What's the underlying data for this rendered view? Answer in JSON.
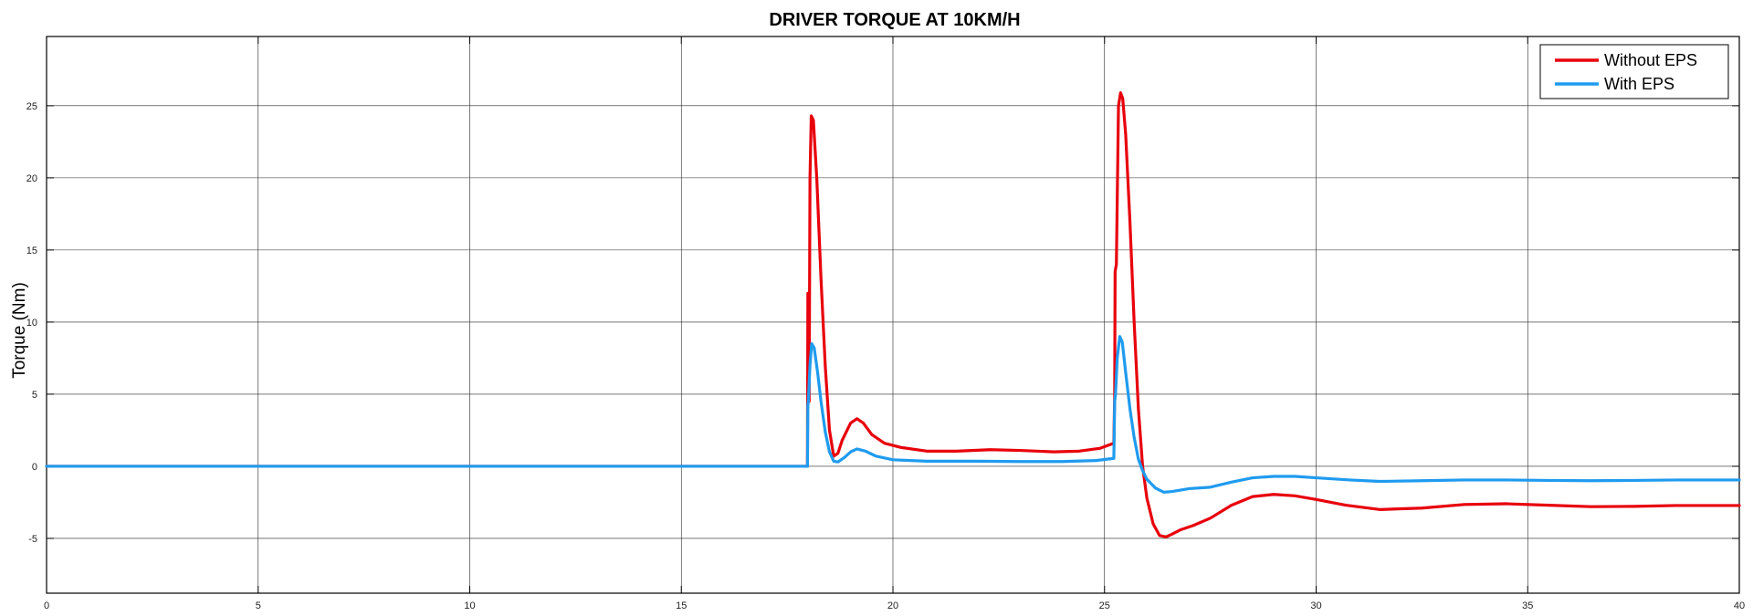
{
  "chart_data": {
    "type": "line",
    "title": "DRIVER TORQUE AT 10KM/H",
    "xlabel": "",
    "ylabel": "Torque (Nm)",
    "xlim": [
      0,
      40
    ],
    "ylim": [
      -8.8,
      29.8
    ],
    "x_ticks": [
      0,
      5,
      10,
      15,
      20,
      25,
      30,
      35,
      40
    ],
    "y_ticks": [
      -5,
      0,
      5,
      10,
      15,
      20,
      25
    ],
    "grid": true,
    "legend_position": "top-right",
    "series": [
      {
        "name": "Without EPS",
        "color": "#e8000b",
        "points": [
          [
            0,
            0
          ],
          [
            17.98,
            0
          ],
          [
            17.99,
            12
          ],
          [
            18.0,
            12
          ],
          [
            18.02,
            4.5
          ],
          [
            18.04,
            20
          ],
          [
            18.07,
            24.3
          ],
          [
            18.12,
            24
          ],
          [
            18.2,
            20
          ],
          [
            18.3,
            13
          ],
          [
            18.4,
            7
          ],
          [
            18.5,
            2.5
          ],
          [
            18.6,
            0.7
          ],
          [
            18.7,
            0.9
          ],
          [
            18.8,
            1.8
          ],
          [
            19.0,
            3.0
          ],
          [
            19.15,
            3.3
          ],
          [
            19.3,
            3.0
          ],
          [
            19.5,
            2.2
          ],
          [
            19.8,
            1.6
          ],
          [
            20.2,
            1.3
          ],
          [
            20.8,
            1.05
          ],
          [
            21.5,
            1.05
          ],
          [
            22.3,
            1.15
          ],
          [
            23.0,
            1.1
          ],
          [
            23.8,
            1.0
          ],
          [
            24.4,
            1.05
          ],
          [
            24.9,
            1.25
          ],
          [
            25.22,
            1.6
          ],
          [
            25.24,
            5
          ],
          [
            25.25,
            13.5
          ],
          [
            25.28,
            14
          ],
          [
            25.33,
            25
          ],
          [
            25.38,
            25.9
          ],
          [
            25.43,
            25.5
          ],
          [
            25.5,
            23
          ],
          [
            25.6,
            17
          ],
          [
            25.7,
            10
          ],
          [
            25.8,
            4
          ],
          [
            25.9,
            0
          ],
          [
            26.0,
            -2.2
          ],
          [
            26.15,
            -4
          ],
          [
            26.3,
            -4.8
          ],
          [
            26.45,
            -4.9
          ],
          [
            26.6,
            -4.7
          ],
          [
            26.8,
            -4.4
          ],
          [
            27.1,
            -4.1
          ],
          [
            27.5,
            -3.6
          ],
          [
            28.0,
            -2.7
          ],
          [
            28.5,
            -2.1
          ],
          [
            29.0,
            -1.95
          ],
          [
            29.5,
            -2.05
          ],
          [
            30.0,
            -2.3
          ],
          [
            30.7,
            -2.7
          ],
          [
            31.5,
            -3.0
          ],
          [
            32.5,
            -2.9
          ],
          [
            33.5,
            -2.65
          ],
          [
            34.5,
            -2.6
          ],
          [
            35.5,
            -2.7
          ],
          [
            36.5,
            -2.8
          ],
          [
            37.5,
            -2.78
          ],
          [
            38.5,
            -2.72
          ],
          [
            40,
            -2.72
          ]
        ]
      },
      {
        "name": "With EPS",
        "color": "#1f9bef",
        "points": [
          [
            0,
            0
          ],
          [
            17.98,
            0
          ],
          [
            17.99,
            4.2
          ],
          [
            18.0,
            4.5
          ],
          [
            18.04,
            7
          ],
          [
            18.08,
            8.5
          ],
          [
            18.14,
            8.2
          ],
          [
            18.22,
            6.5
          ],
          [
            18.3,
            4.5
          ],
          [
            18.4,
            2.4
          ],
          [
            18.5,
            1
          ],
          [
            18.6,
            0.35
          ],
          [
            18.7,
            0.3
          ],
          [
            18.85,
            0.6
          ],
          [
            19.0,
            1.0
          ],
          [
            19.15,
            1.2
          ],
          [
            19.35,
            1.05
          ],
          [
            19.6,
            0.7
          ],
          [
            20.0,
            0.45
          ],
          [
            20.8,
            0.35
          ],
          [
            22.0,
            0.35
          ],
          [
            23.0,
            0.33
          ],
          [
            24.0,
            0.33
          ],
          [
            24.8,
            0.4
          ],
          [
            25.22,
            0.55
          ],
          [
            25.24,
            4.5
          ],
          [
            25.26,
            5
          ],
          [
            25.3,
            7.5
          ],
          [
            25.36,
            9
          ],
          [
            25.42,
            8.6
          ],
          [
            25.5,
            6.5
          ],
          [
            25.6,
            4
          ],
          [
            25.7,
            2
          ],
          [
            25.8,
            0.5
          ],
          [
            25.9,
            -0.3
          ],
          [
            26.0,
            -0.9
          ],
          [
            26.2,
            -1.5
          ],
          [
            26.4,
            -1.8
          ],
          [
            26.6,
            -1.75
          ],
          [
            27.0,
            -1.55
          ],
          [
            27.5,
            -1.45
          ],
          [
            28.0,
            -1.1
          ],
          [
            28.5,
            -0.8
          ],
          [
            29.0,
            -0.7
          ],
          [
            29.5,
            -0.7
          ],
          [
            30.0,
            -0.8
          ],
          [
            30.8,
            -0.95
          ],
          [
            31.5,
            -1.05
          ],
          [
            32.5,
            -1.0
          ],
          [
            33.5,
            -0.95
          ],
          [
            34.5,
            -0.95
          ],
          [
            35.5,
            -0.98
          ],
          [
            36.5,
            -1.0
          ],
          [
            37.5,
            -0.98
          ],
          [
            38.5,
            -0.95
          ],
          [
            40,
            -0.95
          ]
        ]
      }
    ]
  }
}
